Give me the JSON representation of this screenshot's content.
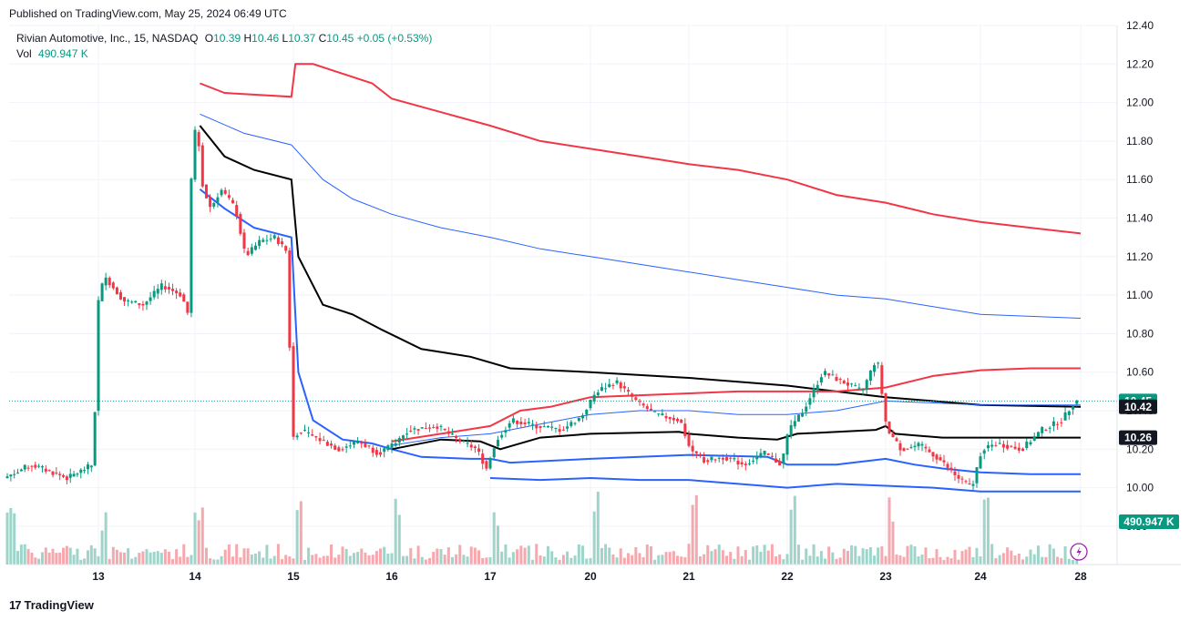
{
  "header": {
    "published": "Published on TradingView.com, May 25, 2024 06:49 UTC"
  },
  "legend": {
    "symbol": "Rivian Automotive, Inc., 15, NASDAQ",
    "o_label": "O",
    "o": "10.39",
    "h_label": "H",
    "h": "10.46",
    "l_label": "L",
    "l": "10.37",
    "c_label": "C",
    "c": "10.45",
    "change": "+0.05 (+0.53%)",
    "vol_label": "Vol",
    "vol": "490.947 K"
  },
  "footer": {
    "brand": "TradingView"
  },
  "colors": {
    "up": "#089981",
    "down": "#f23645",
    "vwap": "#000000",
    "band_inner": "#2962ff",
    "band_outer": "#f23645",
    "vol_up": "#9ed4c9",
    "vol_down": "#f5a9ae"
  },
  "chart_data": {
    "type": "candlestick",
    "y_axis": {
      "ticks": [
        "12.40",
        "12.20",
        "12.00",
        "11.80",
        "11.60",
        "11.40",
        "11.20",
        "11.00",
        "10.80",
        "10.60",
        "10.40",
        "10.20",
        "10.00",
        "9.80"
      ],
      "range": [
        9.82,
        12.4
      ]
    },
    "x_axis": {
      "ticks": [
        {
          "label": "13",
          "day": 1
        },
        {
          "label": "14",
          "day": 2
        },
        {
          "label": "15",
          "day": 3
        },
        {
          "label": "16",
          "day": 4
        },
        {
          "label": "17",
          "day": 5
        },
        {
          "label": "20",
          "day": 6
        },
        {
          "label": "21",
          "day": 7
        },
        {
          "label": "22",
          "day": 8
        },
        {
          "label": "23",
          "day": 9
        },
        {
          "label": "24",
          "day": 10
        },
        {
          "label": "28",
          "day": 11
        }
      ]
    },
    "price_labels": [
      {
        "text": "10.45",
        "value": 10.45,
        "color": "#089981"
      },
      {
        "text": "10.42",
        "value": 10.42,
        "color": "#131722"
      },
      {
        "text": "10.26",
        "value": 10.26,
        "color": "#131722"
      }
    ],
    "volume_label": {
      "text": "490.947 K",
      "color": "#089981"
    },
    "last_close": 10.45,
    "price_path": [
      [
        0.0,
        10.05
      ],
      [
        0.3,
        10.12
      ],
      [
        0.7,
        10.05
      ],
      [
        0.98,
        10.12
      ],
      [
        1.0,
        10.4
      ],
      [
        1.03,
        10.95
      ],
      [
        1.1,
        11.1
      ],
      [
        1.3,
        10.97
      ],
      [
        1.5,
        10.95
      ],
      [
        1.7,
        11.05
      ],
      [
        1.9,
        11.0
      ],
      [
        1.98,
        10.88
      ],
      [
        2.0,
        11.6
      ],
      [
        2.05,
        11.92
      ],
      [
        2.12,
        11.55
      ],
      [
        2.2,
        11.45
      ],
      [
        2.3,
        11.55
      ],
      [
        2.45,
        11.45
      ],
      [
        2.55,
        11.2
      ],
      [
        2.7,
        11.28
      ],
      [
        2.85,
        11.3
      ],
      [
        2.98,
        11.22
      ],
      [
        3.02,
        10.25
      ],
      [
        3.1,
        10.3
      ],
      [
        3.3,
        10.25
      ],
      [
        3.5,
        10.2
      ],
      [
        3.7,
        10.24
      ],
      [
        3.9,
        10.18
      ],
      [
        4.05,
        10.22
      ],
      [
        4.2,
        10.3
      ],
      [
        4.5,
        10.32
      ],
      [
        4.7,
        10.25
      ],
      [
        4.9,
        10.2
      ],
      [
        5.0,
        10.1
      ],
      [
        5.1,
        10.25
      ],
      [
        5.25,
        10.35
      ],
      [
        5.5,
        10.32
      ],
      [
        5.75,
        10.3
      ],
      [
        5.95,
        10.37
      ],
      [
        6.1,
        10.5
      ],
      [
        6.3,
        10.55
      ],
      [
        6.5,
        10.45
      ],
      [
        6.7,
        10.38
      ],
      [
        6.95,
        10.35
      ],
      [
        7.05,
        10.2
      ],
      [
        7.2,
        10.14
      ],
      [
        7.4,
        10.16
      ],
      [
        7.6,
        10.12
      ],
      [
        7.8,
        10.18
      ],
      [
        7.98,
        10.12
      ],
      [
        8.05,
        10.3
      ],
      [
        8.2,
        10.4
      ],
      [
        8.4,
        10.6
      ],
      [
        8.6,
        10.55
      ],
      [
        8.8,
        10.5
      ],
      [
        8.95,
        10.68
      ],
      [
        9.05,
        10.3
      ],
      [
        9.2,
        10.2
      ],
      [
        9.4,
        10.22
      ],
      [
        9.6,
        10.15
      ],
      [
        9.8,
        10.05
      ],
      [
        9.95,
        10.0
      ],
      [
        10.05,
        10.2
      ],
      [
        10.2,
        10.23
      ],
      [
        10.45,
        10.2
      ],
      [
        10.65,
        10.3
      ],
      [
        10.85,
        10.35
      ],
      [
        10.98,
        10.45
      ]
    ],
    "vwap_path": [
      [
        2.05,
        11.88
      ],
      [
        2.3,
        11.72
      ],
      [
        2.6,
        11.65
      ],
      [
        2.98,
        11.6
      ],
      [
        3.05,
        11.2
      ],
      [
        3.3,
        10.95
      ],
      [
        3.6,
        10.9
      ],
      [
        3.9,
        10.82
      ],
      [
        4.3,
        10.72
      ],
      [
        4.8,
        10.68
      ],
      [
        5.2,
        10.62
      ],
      [
        6.0,
        10.6
      ],
      [
        7.0,
        10.57
      ],
      [
        8.0,
        10.53
      ],
      [
        8.5,
        10.5
      ],
      [
        9.0,
        10.47
      ],
      [
        10.0,
        10.43
      ],
      [
        11.0,
        10.42
      ]
    ],
    "vwap2_path": [
      [
        4.0,
        10.2
      ],
      [
        4.5,
        10.25
      ],
      [
        4.9,
        10.24
      ],
      [
        5.1,
        10.2
      ],
      [
        5.5,
        10.26
      ],
      [
        6.0,
        10.28
      ],
      [
        6.9,
        10.29
      ],
      [
        7.0,
        10.28
      ],
      [
        7.5,
        10.26
      ],
      [
        7.9,
        10.25
      ],
      [
        8.1,
        10.28
      ],
      [
        8.9,
        10.3
      ],
      [
        9.0,
        10.32
      ],
      [
        9.1,
        10.28
      ],
      [
        9.6,
        10.26
      ],
      [
        10.0,
        10.26
      ],
      [
        11.0,
        10.26
      ]
    ],
    "upper_outer_path": [
      [
        2.05,
        12.1
      ],
      [
        2.3,
        12.05
      ],
      [
        2.98,
        12.03
      ],
      [
        3.02,
        12.2
      ],
      [
        3.2,
        12.2
      ],
      [
        3.5,
        12.15
      ],
      [
        3.8,
        12.1
      ],
      [
        4.0,
        12.02
      ],
      [
        4.5,
        11.95
      ],
      [
        5.0,
        11.88
      ],
      [
        5.5,
        11.8
      ],
      [
        6.0,
        11.76
      ],
      [
        6.5,
        11.72
      ],
      [
        7.0,
        11.68
      ],
      [
        7.5,
        11.65
      ],
      [
        8.0,
        11.6
      ],
      [
        8.5,
        11.52
      ],
      [
        9.0,
        11.48
      ],
      [
        9.5,
        11.42
      ],
      [
        10.0,
        11.38
      ],
      [
        10.5,
        11.35
      ],
      [
        11.0,
        11.32
      ]
    ],
    "upper_inner_path": [
      [
        2.05,
        11.94
      ],
      [
        2.5,
        11.84
      ],
      [
        2.98,
        11.78
      ],
      [
        3.3,
        11.6
      ],
      [
        3.6,
        11.5
      ],
      [
        4.0,
        11.42
      ],
      [
        4.5,
        11.35
      ],
      [
        5.0,
        11.3
      ],
      [
        5.5,
        11.24
      ],
      [
        6.0,
        11.2
      ],
      [
        6.5,
        11.16
      ],
      [
        7.0,
        11.12
      ],
      [
        7.5,
        11.08
      ],
      [
        8.0,
        11.04
      ],
      [
        8.5,
        11.0
      ],
      [
        9.0,
        10.98
      ],
      [
        9.5,
        10.94
      ],
      [
        10.0,
        10.9
      ],
      [
        10.5,
        10.89
      ],
      [
        11.0,
        10.88
      ]
    ],
    "lower_inner_path": [
      [
        2.05,
        11.55
      ],
      [
        2.3,
        11.45
      ],
      [
        2.6,
        11.35
      ],
      [
        2.98,
        11.3
      ],
      [
        3.05,
        10.6
      ],
      [
        3.2,
        10.35
      ],
      [
        3.5,
        10.25
      ],
      [
        3.8,
        10.23
      ],
      [
        4.0,
        10.2
      ],
      [
        4.3,
        10.16
      ],
      [
        4.8,
        10.15
      ],
      [
        5.0,
        10.15
      ],
      [
        5.2,
        10.13
      ],
      [
        6.0,
        10.15
      ],
      [
        7.0,
        10.17
      ],
      [
        7.8,
        10.16
      ],
      [
        8.0,
        10.12
      ],
      [
        8.5,
        10.12
      ],
      [
        9.0,
        10.15
      ],
      [
        9.3,
        10.12
      ],
      [
        9.6,
        10.1
      ],
      [
        10.0,
        10.08
      ],
      [
        10.5,
        10.07
      ],
      [
        11.0,
        10.07
      ]
    ],
    "lower_outer_path": [
      [
        5.0,
        10.05
      ],
      [
        5.5,
        10.04
      ],
      [
        6.0,
        10.05
      ],
      [
        6.5,
        10.04
      ],
      [
        7.0,
        10.04
      ],
      [
        7.5,
        10.02
      ],
      [
        8.0,
        10.0
      ],
      [
        8.5,
        10.02
      ],
      [
        9.0,
        10.01
      ],
      [
        9.5,
        10.0
      ],
      [
        10.0,
        9.98
      ],
      [
        10.5,
        9.98
      ],
      [
        11.0,
        9.98
      ]
    ],
    "upper_band2_path": [
      [
        4.0,
        10.24
      ],
      [
        4.5,
        10.28
      ],
      [
        5.0,
        10.32
      ],
      [
        5.3,
        10.4
      ],
      [
        5.6,
        10.42
      ],
      [
        6.0,
        10.47
      ],
      [
        6.5,
        10.48
      ],
      [
        7.0,
        10.49
      ],
      [
        7.5,
        10.5
      ],
      [
        8.0,
        10.5
      ],
      [
        8.5,
        10.5
      ],
      [
        9.0,
        10.52
      ],
      [
        9.5,
        10.58
      ],
      [
        10.0,
        10.61
      ],
      [
        10.5,
        10.62
      ],
      [
        11.0,
        10.62
      ]
    ],
    "upper_blue2_path": [
      [
        4.0,
        10.22
      ],
      [
        4.5,
        10.26
      ],
      [
        5.0,
        10.28
      ],
      [
        5.5,
        10.33
      ],
      [
        6.0,
        10.38
      ],
      [
        6.5,
        10.4
      ],
      [
        7.0,
        10.4
      ],
      [
        7.5,
        10.38
      ],
      [
        8.0,
        10.38
      ],
      [
        8.5,
        10.4
      ],
      [
        9.0,
        10.45
      ],
      [
        9.5,
        10.44
      ],
      [
        10.0,
        10.43
      ],
      [
        11.0,
        10.43
      ]
    ]
  }
}
